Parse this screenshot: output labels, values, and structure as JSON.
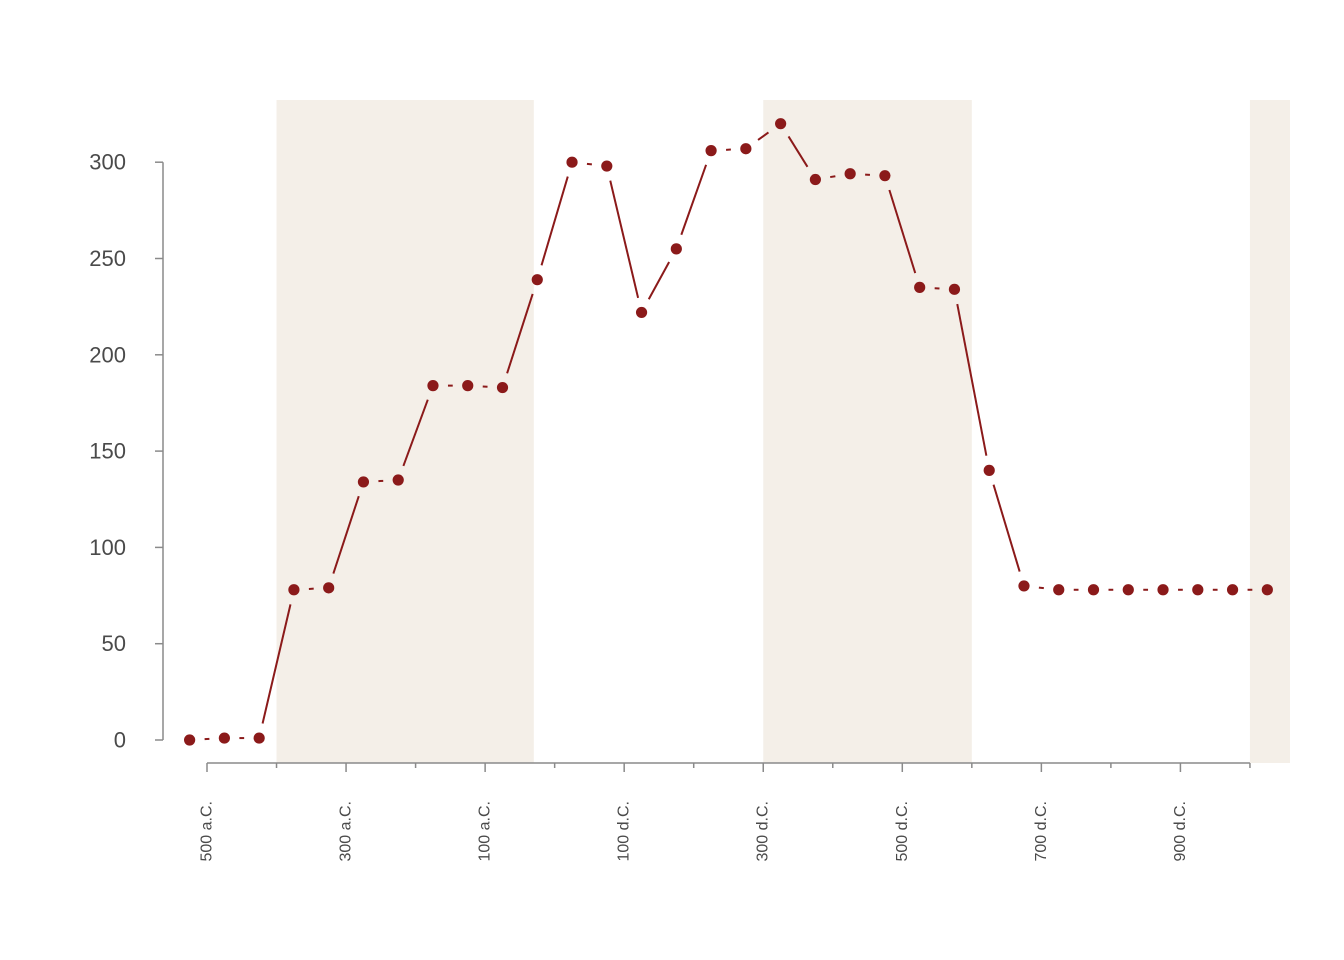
{
  "chart_data": {
    "type": "line",
    "title": "",
    "xlabel": "",
    "ylabel": "",
    "colors": {
      "series": "#8b1a1a",
      "band": "#f4efe8",
      "axis": "#8a8a8a",
      "text": "#4a4a4a"
    },
    "xlim": [
      -575,
      1015
    ],
    "ylim": [
      -12,
      330
    ],
    "y_ticks": [
      0,
      50,
      100,
      150,
      200,
      250,
      300
    ],
    "y_tick_labels": [
      "0",
      "50",
      "100",
      "150",
      "200",
      "250",
      "300"
    ],
    "x_major_ticks": [
      -500,
      -300,
      -100,
      100,
      300,
      500,
      700,
      900
    ],
    "x_tick_labels": [
      "500 a.C.",
      "300 a.C.",
      "100 a.C.",
      "100 d.C.",
      "300 d.C.",
      "500 d.C.",
      "700 d.C.",
      "900 d.C."
    ],
    "x_minor_ticks": [
      -400,
      -200,
      0,
      200,
      400,
      600,
      800,
      1000
    ],
    "shaded_periods": [
      {
        "start": -400,
        "end": -30
      },
      {
        "start": 300,
        "end": 600
      },
      {
        "start": 1000,
        "end": 1060
      }
    ],
    "grid": false,
    "legend": "none",
    "series": [
      {
        "x": [
          -525,
          -475,
          -425,
          -375,
          -325,
          -275,
          -225,
          -175,
          -125,
          -75,
          -25,
          25,
          75,
          125,
          175,
          225,
          275,
          325,
          375,
          425,
          475,
          525,
          575,
          625,
          675,
          725,
          775,
          825,
          875,
          925,
          975,
          1025
        ],
        "y": [
          0,
          1,
          1,
          78,
          79,
          134,
          135,
          184,
          184,
          183,
          239,
          300,
          298,
          222,
          255,
          306,
          307,
          320,
          291,
          294,
          293,
          235,
          234,
          140,
          80,
          78,
          78,
          78,
          78,
          78,
          78,
          78
        ]
      }
    ]
  }
}
